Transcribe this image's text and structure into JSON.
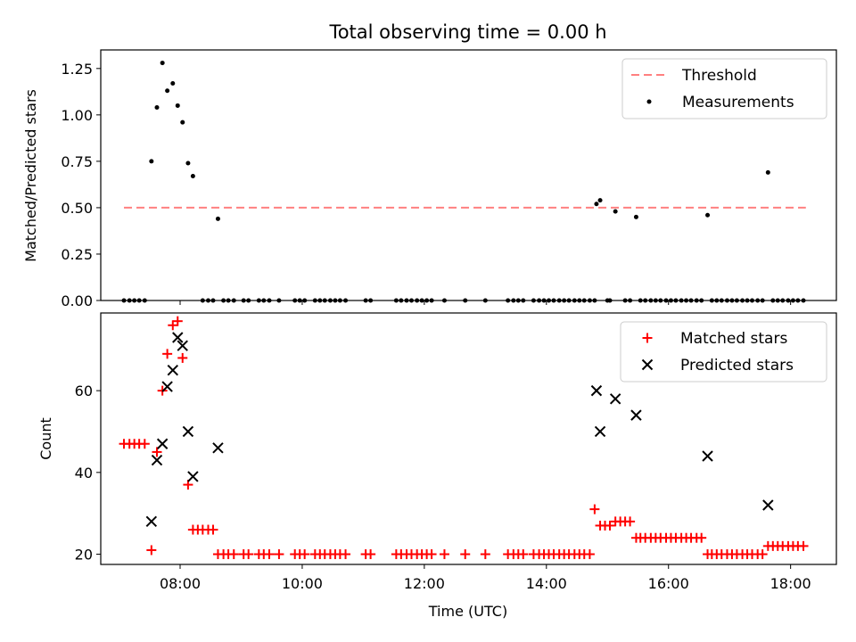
{
  "chart_data": {
    "title": "Total observing time = 0.00 h",
    "xlabel": "Time (UTC)",
    "x_ticks": [
      "08:00",
      "10:00",
      "12:00",
      "14:00",
      "16:00",
      "18:00"
    ],
    "x_tick_values": [
      8,
      10,
      12,
      14,
      16,
      18
    ],
    "xlim": [
      6.7,
      18.75
    ],
    "top": {
      "type": "scatter",
      "ylabel": "Matched/Predicted stars",
      "ylim": [
        0,
        1.35
      ],
      "y_ticks": [
        "0.00",
        "0.25",
        "0.50",
        "0.75",
        "1.00",
        "1.25"
      ],
      "y_tick_values": [
        0,
        0.25,
        0.5,
        0.75,
        1.0,
        1.25
      ],
      "legend": {
        "placement": "upper right",
        "threshold_label": "Threshold",
        "measurements_label": "Measurements"
      },
      "threshold": {
        "value": 0.5,
        "x_range": [
          7.08,
          18.25
        ],
        "color": "#ff8080",
        "style": "dashed"
      },
      "measurements_color": "#000000",
      "nonzero": [
        [
          7.53,
          0.75
        ],
        [
          7.62,
          1.04
        ],
        [
          7.71,
          1.28
        ],
        [
          7.79,
          1.13
        ],
        [
          7.88,
          1.17
        ],
        [
          7.96,
          1.05
        ],
        [
          8.04,
          0.96
        ],
        [
          8.13,
          0.74
        ],
        [
          8.21,
          0.67
        ],
        [
          8.62,
          0.44
        ],
        [
          14.82,
          0.52
        ],
        [
          14.88,
          0.54
        ],
        [
          15.13,
          0.48
        ],
        [
          15.47,
          0.45
        ],
        [
          16.64,
          0.46
        ],
        [
          17.63,
          0.69
        ]
      ],
      "zero_x": [
        7.08,
        7.17,
        7.25,
        7.33,
        7.42,
        8.37,
        8.46,
        8.54,
        8.71,
        8.79,
        8.88,
        9.04,
        9.12,
        9.29,
        9.37,
        9.46,
        9.62,
        9.88,
        9.96,
        10.04,
        10.21,
        10.29,
        10.37,
        10.46,
        10.54,
        10.62,
        10.71,
        11.04,
        11.12,
        11.54,
        11.62,
        11.71,
        11.79,
        11.88,
        11.96,
        12.04,
        12.12,
        12.33,
        12.67,
        13.0,
        13.37,
        13.46,
        13.54,
        13.62,
        13.79,
        13.88,
        13.96,
        14.04,
        14.12,
        14.21,
        14.29,
        14.37,
        14.46,
        14.54,
        14.62,
        14.71,
        14.79,
        15.0,
        15.04,
        15.29,
        15.37,
        15.54,
        15.62,
        15.71,
        15.79,
        15.87,
        15.96,
        16.04,
        16.12,
        16.21,
        16.29,
        16.37,
        16.46,
        16.54,
        16.71,
        16.79,
        16.87,
        16.96,
        17.04,
        17.12,
        17.21,
        17.29,
        17.37,
        17.46,
        17.54,
        17.71,
        17.79,
        17.87,
        17.96,
        18.04,
        18.12,
        18.21
      ]
    },
    "bottom": {
      "type": "scatter",
      "ylabel": "Count",
      "ylim": [
        17.5,
        79
      ],
      "y_ticks": [
        "20",
        "40",
        "60"
      ],
      "y_tick_values": [
        20,
        40,
        60
      ],
      "legend": {
        "placement": "upper right"
      },
      "series": [
        {
          "name": "Matched stars",
          "marker": "plus",
          "color": "#ff0000",
          "points": [
            [
              7.08,
              47
            ],
            [
              7.17,
              47
            ],
            [
              7.25,
              47
            ],
            [
              7.33,
              47
            ],
            [
              7.42,
              47
            ],
            [
              7.53,
              21
            ],
            [
              7.62,
              45
            ],
            [
              7.71,
              60
            ],
            [
              7.79,
              69
            ],
            [
              7.88,
              76
            ],
            [
              7.96,
              77
            ],
            [
              8.04,
              68
            ],
            [
              8.13,
              37
            ],
            [
              8.21,
              26
            ],
            [
              8.29,
              26
            ],
            [
              8.37,
              26
            ],
            [
              8.46,
              26
            ],
            [
              8.54,
              26
            ],
            [
              8.62,
              20
            ],
            [
              8.71,
              20
            ],
            [
              8.79,
              20
            ],
            [
              8.88,
              20
            ],
            [
              9.04,
              20
            ],
            [
              9.12,
              20
            ],
            [
              9.29,
              20
            ],
            [
              9.37,
              20
            ],
            [
              9.46,
              20
            ],
            [
              9.62,
              20
            ],
            [
              9.88,
              20
            ],
            [
              9.96,
              20
            ],
            [
              10.04,
              20
            ],
            [
              10.21,
              20
            ],
            [
              10.29,
              20
            ],
            [
              10.37,
              20
            ],
            [
              10.46,
              20
            ],
            [
              10.54,
              20
            ],
            [
              10.62,
              20
            ],
            [
              10.71,
              20
            ],
            [
              11.04,
              20
            ],
            [
              11.12,
              20
            ],
            [
              11.54,
              20
            ],
            [
              11.62,
              20
            ],
            [
              11.71,
              20
            ],
            [
              11.79,
              20
            ],
            [
              11.88,
              20
            ],
            [
              11.96,
              20
            ],
            [
              12.04,
              20
            ],
            [
              12.12,
              20
            ],
            [
              12.33,
              20
            ],
            [
              12.67,
              20
            ],
            [
              13.0,
              20
            ],
            [
              13.37,
              20
            ],
            [
              13.46,
              20
            ],
            [
              13.54,
              20
            ],
            [
              13.62,
              20
            ],
            [
              13.79,
              20
            ],
            [
              13.88,
              20
            ],
            [
              13.96,
              20
            ],
            [
              14.04,
              20
            ],
            [
              14.12,
              20
            ],
            [
              14.21,
              20
            ],
            [
              14.29,
              20
            ],
            [
              14.37,
              20
            ],
            [
              14.46,
              20
            ],
            [
              14.54,
              20
            ],
            [
              14.62,
              20
            ],
            [
              14.71,
              20
            ],
            [
              14.79,
              31
            ],
            [
              14.88,
              27
            ],
            [
              14.96,
              27
            ],
            [
              15.04,
              27
            ],
            [
              15.13,
              28
            ],
            [
              15.21,
              28
            ],
            [
              15.29,
              28
            ],
            [
              15.37,
              28
            ],
            [
              15.47,
              24
            ],
            [
              15.54,
              24
            ],
            [
              15.62,
              24
            ],
            [
              15.71,
              24
            ],
            [
              15.79,
              24
            ],
            [
              15.87,
              24
            ],
            [
              15.96,
              24
            ],
            [
              16.04,
              24
            ],
            [
              16.12,
              24
            ],
            [
              16.21,
              24
            ],
            [
              16.29,
              24
            ],
            [
              16.37,
              24
            ],
            [
              16.46,
              24
            ],
            [
              16.54,
              24
            ],
            [
              16.64,
              20
            ],
            [
              16.71,
              20
            ],
            [
              16.79,
              20
            ],
            [
              16.87,
              20
            ],
            [
              16.96,
              20
            ],
            [
              17.04,
              20
            ],
            [
              17.12,
              20
            ],
            [
              17.21,
              20
            ],
            [
              17.29,
              20
            ],
            [
              17.37,
              20
            ],
            [
              17.46,
              20
            ],
            [
              17.54,
              20
            ],
            [
              17.63,
              22
            ],
            [
              17.71,
              22
            ],
            [
              17.79,
              22
            ],
            [
              17.87,
              22
            ],
            [
              17.96,
              22
            ],
            [
              18.04,
              22
            ],
            [
              18.12,
              22
            ],
            [
              18.21,
              22
            ]
          ]
        },
        {
          "name": "Predicted stars",
          "marker": "x",
          "color": "#000000",
          "points": [
            [
              7.53,
              28
            ],
            [
              7.62,
              43
            ],
            [
              7.71,
              47
            ],
            [
              7.79,
              61
            ],
            [
              7.88,
              65
            ],
            [
              7.96,
              73
            ],
            [
              8.04,
              71
            ],
            [
              8.13,
              50
            ],
            [
              8.21,
              39
            ],
            [
              8.62,
              46
            ],
            [
              14.82,
              60
            ],
            [
              14.88,
              50
            ],
            [
              15.13,
              58
            ],
            [
              15.47,
              54
            ],
            [
              16.64,
              44
            ],
            [
              17.63,
              32
            ]
          ]
        }
      ]
    }
  }
}
